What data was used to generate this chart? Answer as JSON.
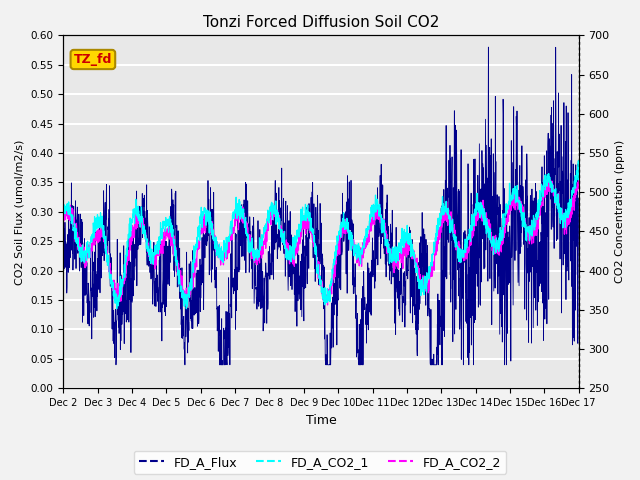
{
  "title": "Tonzi Forced Diffusion Soil CO2",
  "xlabel": "Time",
  "ylabel_left": "CO2 Soil Flux (umol/m2/s)",
  "ylabel_right": "CO2 Concentration (ppm)",
  "ylim_left": [
    0.0,
    0.6
  ],
  "ylim_right": [
    250,
    700
  ],
  "xtick_labels": [
    "Dec 2",
    "Dec 3",
    "Dec 4",
    "Dec 5",
    "Dec 6",
    "Dec 7",
    "Dec 8",
    "Dec 9",
    "Dec 10",
    "Dec 11",
    "Dec 12",
    "Dec 13",
    "Dec 14",
    "Dec 15",
    "Dec 16",
    "Dec 17"
  ],
  "color_flux": "#00008B",
  "color_co2_1": "#00FFFF",
  "color_co2_2": "#FF00FF",
  "label_flux": "FD_A_Flux",
  "label_co2_1": "FD_A_CO2_1",
  "label_co2_2": "FD_A_CO2_2",
  "tag_text": "TZ_fd",
  "tag_color": "#FFD700",
  "tag_text_color": "#CC0000",
  "bg_color": "#E8E8E8",
  "fig_bg": "#F2F2F2",
  "n_points": 2000,
  "seed": 42
}
